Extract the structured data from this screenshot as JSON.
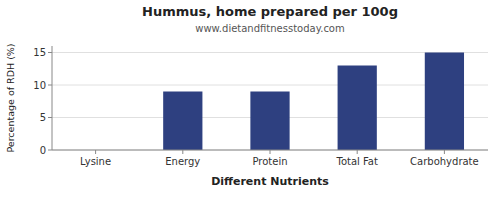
{
  "chart_data": {
    "type": "bar",
    "title": "Hummus, home prepared per 100g",
    "subtitle": "www.dietandfitnesstoday.com",
    "xlabel": "Different Nutrients",
    "ylabel": "Percentage of RDH (%)",
    "categories": [
      "Lysine",
      "Energy",
      "Protein",
      "Total Fat",
      "Carbohydrate"
    ],
    "values": [
      0,
      9,
      9,
      13,
      15
    ],
    "color": "#2e4080",
    "ylim": [
      0,
      16
    ],
    "yticks": [
      0,
      5,
      10,
      15
    ],
    "grid": true
  }
}
